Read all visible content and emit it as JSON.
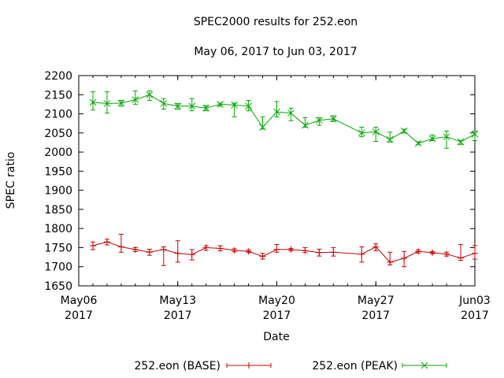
{
  "chart_data": {
    "type": "line",
    "title": "SPEC2000 results for 252.eon",
    "subtitle": "May 06, 2017 to Jun 03, 2017",
    "xlabel": "Date",
    "ylabel": "SPEC ratio",
    "ylim": [
      1650,
      2200
    ],
    "yticks": [
      1650,
      1700,
      1750,
      1800,
      1850,
      1900,
      1950,
      2000,
      2050,
      2100,
      2150,
      2200
    ],
    "xlim": [
      "2017-05-06",
      "2017-06-03"
    ],
    "xticks": [
      {
        "date": "2017-05-06",
        "line1": "May06",
        "line2": "2017"
      },
      {
        "date": "2017-05-13",
        "line1": "May13",
        "line2": "2017"
      },
      {
        "date": "2017-05-20",
        "line1": "May20",
        "line2": "2017"
      },
      {
        "date": "2017-05-27",
        "line1": "May27",
        "line2": "2017"
      },
      {
        "date": "2017-06-03",
        "line1": "Jun03",
        "line2": "2017"
      }
    ],
    "grid": false,
    "legend": "bottom",
    "series": [
      {
        "name": "252.eon (BASE)",
        "color": "#cc0000",
        "marker": "plus",
        "points": [
          {
            "x": "2017-05-07",
            "y": 1755,
            "lo": 1745,
            "hi": 1765
          },
          {
            "x": "2017-05-08",
            "y": 1765,
            "lo": 1757,
            "hi": 1772
          },
          {
            "x": "2017-05-09",
            "y": 1752,
            "lo": 1738,
            "hi": 1785
          },
          {
            "x": "2017-05-10",
            "y": 1745,
            "lo": 1740,
            "hi": 1750
          },
          {
            "x": "2017-05-11",
            "y": 1738,
            "lo": 1730,
            "hi": 1746
          },
          {
            "x": "2017-05-12",
            "y": 1745,
            "lo": 1703,
            "hi": 1752
          },
          {
            "x": "2017-05-13",
            "y": 1735,
            "lo": 1712,
            "hi": 1768
          },
          {
            "x": "2017-05-14",
            "y": 1732,
            "lo": 1718,
            "hi": 1745
          },
          {
            "x": "2017-05-15",
            "y": 1750,
            "lo": 1743,
            "hi": 1755
          },
          {
            "x": "2017-05-16",
            "y": 1748,
            "lo": 1742,
            "hi": 1755
          },
          {
            "x": "2017-05-17",
            "y": 1743,
            "lo": 1739,
            "hi": 1747
          },
          {
            "x": "2017-05-18",
            "y": 1740,
            "lo": 1737,
            "hi": 1744
          },
          {
            "x": "2017-05-19",
            "y": 1727,
            "lo": 1720,
            "hi": 1735
          },
          {
            "x": "2017-05-20",
            "y": 1745,
            "lo": 1738,
            "hi": 1758
          },
          {
            "x": "2017-05-21",
            "y": 1745,
            "lo": 1742,
            "hi": 1748
          },
          {
            "x": "2017-05-22",
            "y": 1742,
            "lo": 1737,
            "hi": 1750
          },
          {
            "x": "2017-05-23",
            "y": 1737,
            "lo": 1728,
            "hi": 1746
          },
          {
            "x": "2017-05-24",
            "y": 1738,
            "lo": 1728,
            "hi": 1750
          },
          {
            "x": "2017-05-26",
            "y": 1733,
            "lo": 1712,
            "hi": 1752
          },
          {
            "x": "2017-05-27",
            "y": 1752,
            "lo": 1742,
            "hi": 1760
          },
          {
            "x": "2017-05-28",
            "y": 1712,
            "lo": 1705,
            "hi": 1738
          },
          {
            "x": "2017-05-29",
            "y": 1722,
            "lo": 1700,
            "hi": 1740
          },
          {
            "x": "2017-05-30",
            "y": 1740,
            "lo": 1736,
            "hi": 1744
          },
          {
            "x": "2017-05-31",
            "y": 1737,
            "lo": 1734,
            "hi": 1740
          },
          {
            "x": "2017-06-01",
            "y": 1733,
            "lo": 1728,
            "hi": 1738
          },
          {
            "x": "2017-06-02",
            "y": 1723,
            "lo": 1717,
            "hi": 1758
          },
          {
            "x": "2017-06-03",
            "y": 1735,
            "lo": 1720,
            "hi": 1755
          }
        ]
      },
      {
        "name": "252.eon (PEAK)",
        "color": "#00aa00",
        "marker": "cross",
        "points": [
          {
            "x": "2017-05-07",
            "y": 2130,
            "lo": 2110,
            "hi": 2158
          },
          {
            "x": "2017-05-08",
            "y": 2127,
            "lo": 2102,
            "hi": 2158
          },
          {
            "x": "2017-05-09",
            "y": 2128,
            "lo": 2120,
            "hi": 2135
          },
          {
            "x": "2017-05-10",
            "y": 2137,
            "lo": 2125,
            "hi": 2160
          },
          {
            "x": "2017-05-11",
            "y": 2150,
            "lo": 2135,
            "hi": 2160
          },
          {
            "x": "2017-05-12",
            "y": 2127,
            "lo": 2112,
            "hi": 2140
          },
          {
            "x": "2017-05-13",
            "y": 2120,
            "lo": 2112,
            "hi": 2127
          },
          {
            "x": "2017-05-14",
            "y": 2120,
            "lo": 2108,
            "hi": 2140
          },
          {
            "x": "2017-05-15",
            "y": 2115,
            "lo": 2108,
            "hi": 2122
          },
          {
            "x": "2017-05-16",
            "y": 2125,
            "lo": 2120,
            "hi": 2128
          },
          {
            "x": "2017-05-17",
            "y": 2123,
            "lo": 2092,
            "hi": 2128
          },
          {
            "x": "2017-05-18",
            "y": 2120,
            "lo": 2108,
            "hi": 2135
          },
          {
            "x": "2017-05-19",
            "y": 2065,
            "lo": 2060,
            "hi": 2092
          },
          {
            "x": "2017-05-20",
            "y": 2105,
            "lo": 2092,
            "hi": 2132
          },
          {
            "x": "2017-05-21",
            "y": 2102,
            "lo": 2082,
            "hi": 2115
          },
          {
            "x": "2017-05-22",
            "y": 2070,
            "lo": 2065,
            "hi": 2090
          },
          {
            "x": "2017-05-23",
            "y": 2083,
            "lo": 2070,
            "hi": 2090
          },
          {
            "x": "2017-05-24",
            "y": 2087,
            "lo": 2080,
            "hi": 2095
          },
          {
            "x": "2017-05-26",
            "y": 2050,
            "lo": 2040,
            "hi": 2065
          },
          {
            "x": "2017-05-27",
            "y": 2053,
            "lo": 2028,
            "hi": 2065
          },
          {
            "x": "2017-05-28",
            "y": 2033,
            "lo": 2026,
            "hi": 2052
          },
          {
            "x": "2017-05-29",
            "y": 2055,
            "lo": 2050,
            "hi": 2060
          },
          {
            "x": "2017-05-30",
            "y": 2023,
            "lo": 2020,
            "hi": 2027
          },
          {
            "x": "2017-05-31",
            "y": 2035,
            "lo": 2030,
            "hi": 2045
          },
          {
            "x": "2017-06-01",
            "y": 2040,
            "lo": 2010,
            "hi": 2055
          },
          {
            "x": "2017-06-02",
            "y": 2027,
            "lo": 2020,
            "hi": 2030
          },
          {
            "x": "2017-06-03",
            "y": 2047,
            "lo": 2030,
            "hi": 2055
          }
        ]
      }
    ]
  }
}
